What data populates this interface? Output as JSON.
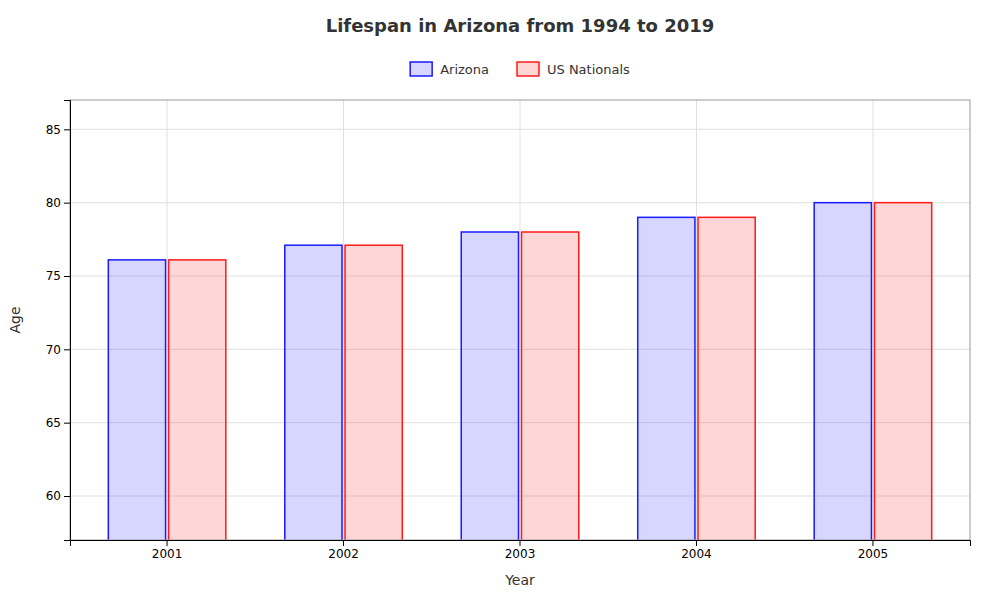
{
  "chart_data": {
    "type": "bar",
    "title": "Lifespan in Arizona from 1994 to 2019",
    "x_label": "Year",
    "y_label": "Age",
    "categories": [
      "2001",
      "2002",
      "2003",
      "2004",
      "2005"
    ],
    "series": [
      {
        "name": "Arizona",
        "color": "#1a1aff",
        "values": [
          76.1,
          77.1,
          78.0,
          79.0,
          80.0
        ]
      },
      {
        "name": "US Nationals",
        "color": "#ff1a1a",
        "values": [
          76.1,
          77.1,
          78.0,
          79.0,
          80.0
        ]
      }
    ],
    "ylim": [
      57,
      87
    ],
    "yticks": [
      60,
      65,
      70,
      75,
      80,
      85
    ],
    "grid": true,
    "legend": "top"
  }
}
